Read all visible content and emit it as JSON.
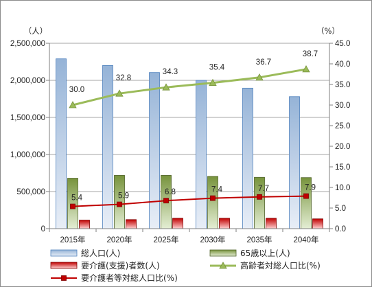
{
  "chart_data": {
    "type": "bar",
    "categories": [
      "2015年",
      "2020年",
      "2025年",
      "2030年",
      "2035年",
      "2040年"
    ],
    "y_left": {
      "unit": "（人）",
      "range": [
        0,
        2500000
      ],
      "ticks": [
        "0",
        "500,000",
        "1,000,000",
        "1,500,000",
        "2,000,000",
        "2,500,000"
      ]
    },
    "y_right": {
      "unit": "（%）",
      "range": [
        0,
        45
      ],
      "ticks": [
        "0.0",
        "5.0",
        "10.0",
        "15.0",
        "20.0",
        "25.0",
        "30.0",
        "35.0",
        "40.0",
        "45.0"
      ]
    },
    "series": [
      {
        "name": "総人口(人)",
        "kind": "bar",
        "axis": "left",
        "color": "#b8cce4",
        "values": [
          2290000,
          2200000,
          2105000,
          2000000,
          1895000,
          1780000
        ]
      },
      {
        "name": "65歳以上(人)",
        "kind": "bar",
        "axis": "left",
        "color": "#9bbb59",
        "values": [
          680000,
          718000,
          718000,
          705000,
          692000,
          688000
        ]
      },
      {
        "name": "要介護(支援)者数(人)",
        "kind": "bar",
        "axis": "left",
        "color": "#e02020",
        "values": [
          115000,
          122000,
          140000,
          140000,
          140000,
          132000
        ]
      },
      {
        "name": "高齢者対総人口比(%)",
        "kind": "line",
        "axis": "right",
        "color": "#9bbb59",
        "marker": "triangle",
        "values": [
          30.0,
          32.8,
          34.3,
          35.4,
          36.7,
          38.7
        ],
        "labels": [
          "30.0",
          "32.8",
          "34.3",
          "35.4",
          "36.7",
          "38.7"
        ]
      },
      {
        "name": "要介護者等対総人口比(%)",
        "kind": "line",
        "axis": "right",
        "color": "#c00000",
        "marker": "square",
        "values": [
          5.4,
          5.9,
          6.8,
          7.4,
          7.7,
          7.9
        ],
        "labels": [
          "5.4",
          "5.9",
          "6.8",
          "7.4",
          "7.7",
          "7.9"
        ]
      }
    ],
    "legend_position": "bottom",
    "grid": "horizontal"
  }
}
